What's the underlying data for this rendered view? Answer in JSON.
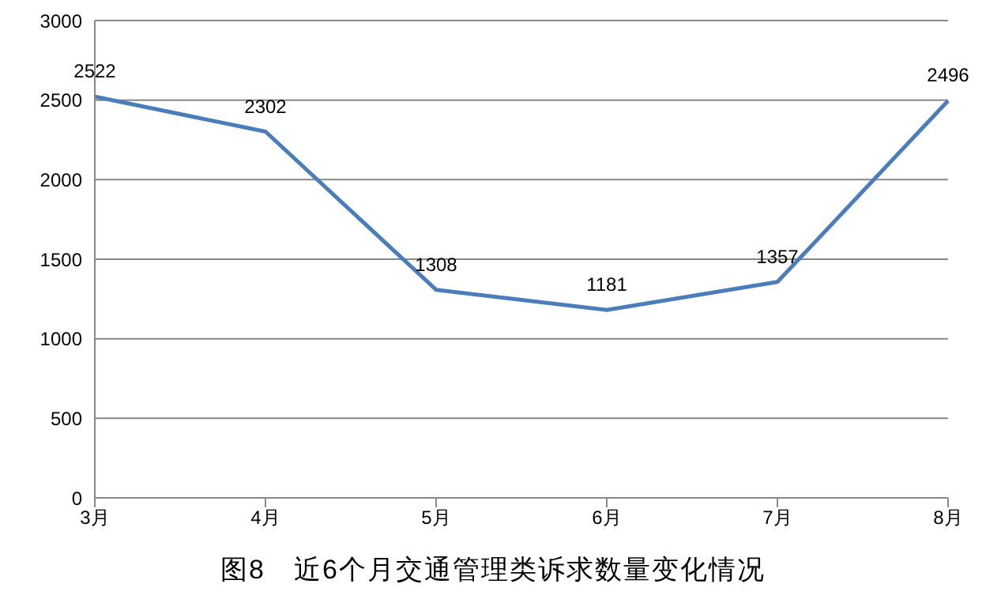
{
  "chart_data": {
    "type": "line",
    "title": "图8　近6个月交通管理类诉求数量变化情况",
    "categories": [
      "3月",
      "4月",
      "5月",
      "6月",
      "7月",
      "8月"
    ],
    "series": [
      {
        "color": "#4a7ebb",
        "values": [
          2522,
          2302,
          1308,
          1181,
          1357,
          2496
        ]
      }
    ],
    "ylim": [
      0,
      3000
    ],
    "yticks": [
      0,
      500,
      1000,
      1500,
      2000,
      2500,
      3000
    ],
    "grid": "y",
    "data_labels": true,
    "marker": "none",
    "line_style": "solid",
    "legend": false
  }
}
